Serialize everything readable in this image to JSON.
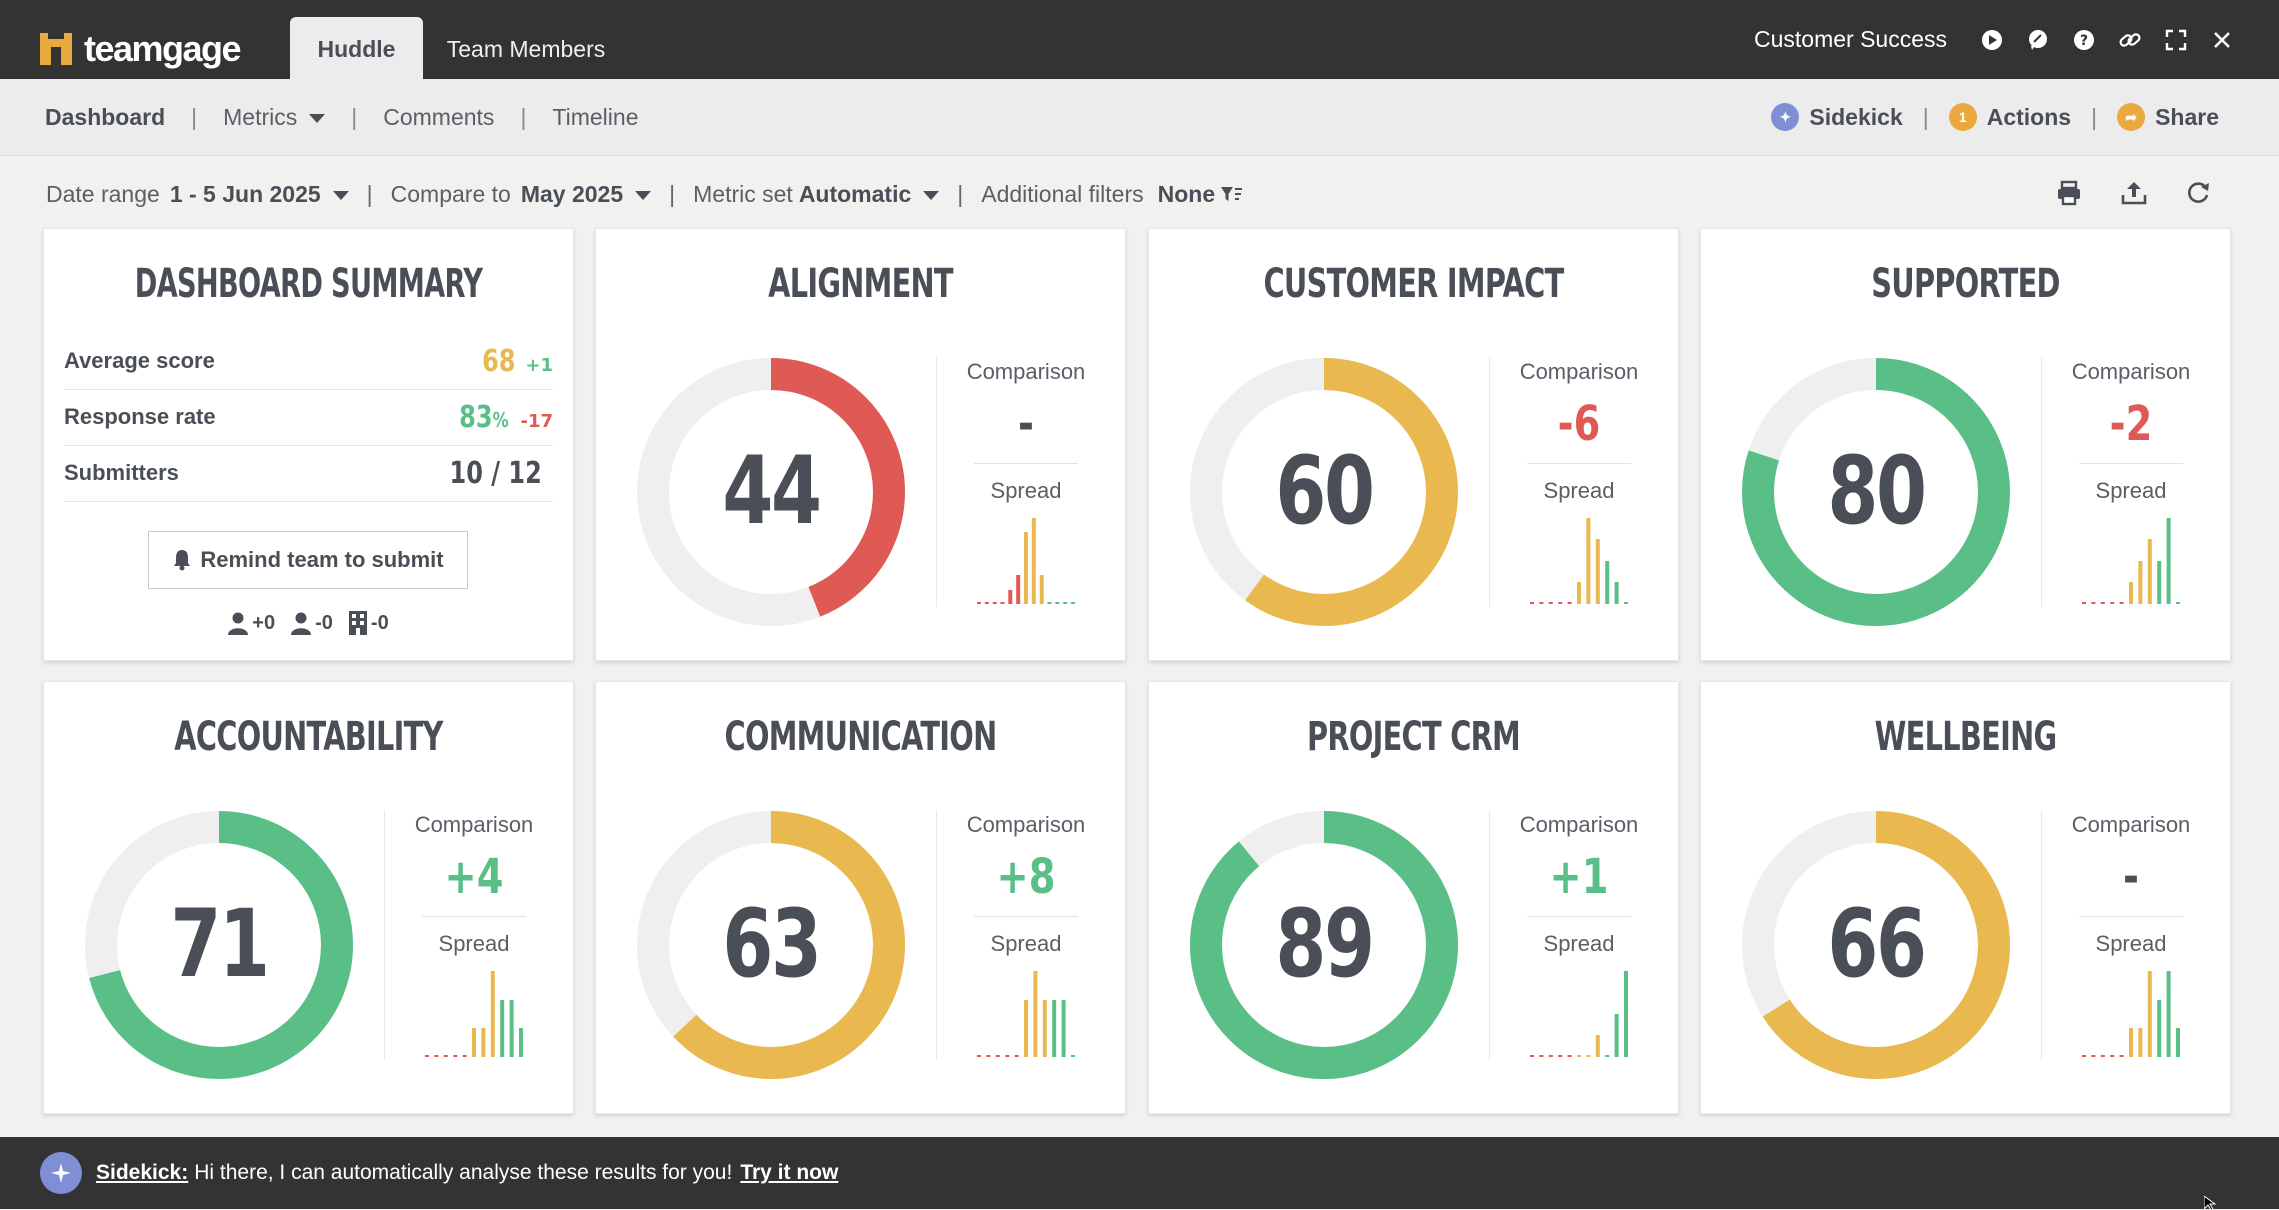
{
  "app": {
    "logo_text": "teamgage",
    "tabs": [
      {
        "label": "Huddle",
        "active": true
      },
      {
        "label": "Team Members",
        "active": false
      }
    ],
    "context_title": "Customer Success",
    "toolbar_icons": [
      "play-icon",
      "chat-icon",
      "help-icon",
      "link-icon",
      "fullscreen-icon",
      "close-icon"
    ]
  },
  "subnav": {
    "items": [
      "Dashboard",
      "Metrics",
      "Comments",
      "Timeline"
    ],
    "active": "Dashboard",
    "sidekick_label": "Sidekick",
    "actions_label": "Actions",
    "actions_count": "1",
    "share_label": "Share"
  },
  "filters": {
    "date_range_label": "Date range",
    "date_range_value": "1 - 5 Jun 2025",
    "compare_label": "Compare to",
    "compare_value": "May 2025",
    "metric_set_label": "Metric set",
    "metric_set_value": "Automatic",
    "additional_label": "Additional filters",
    "additional_value": "None",
    "action_icons": [
      "print-icon",
      "export-icon",
      "refresh-icon"
    ]
  },
  "summary": {
    "title": "DASHBOARD SUMMARY",
    "rows": [
      {
        "label": "Average score",
        "value": "68",
        "delta": "+1",
        "color": "#e9b84f",
        "delta_color": "#5abf86"
      },
      {
        "label": "Response rate",
        "value": "83",
        "unit": "%",
        "delta": "-17",
        "color": "#5abf86",
        "delta_color": "#e05a55"
      },
      {
        "label": "Submitters",
        "value": "10 / 12",
        "delta": "",
        "color": "#4a4f57",
        "delta_color": "#4a4f57"
      }
    ],
    "remind_label": "Remind team to submit",
    "mini_stats": [
      "+0",
      "-0",
      "-0"
    ]
  },
  "colors": {
    "red": "#e05a55",
    "yellow": "#e9b84f",
    "green": "#5abf86",
    "track": "#efefef",
    "text": "#4a4f57"
  },
  "labels": {
    "comparison": "Comparison",
    "spread": "Spread"
  },
  "metrics": [
    {
      "title": "ALIGNMENT",
      "score": 44,
      "comparison": "-",
      "comparison_color": "#4a4f57",
      "spread": [
        0,
        0,
        0,
        0,
        1,
        2,
        5,
        6,
        2,
        0,
        0,
        0,
        0
      ]
    },
    {
      "title": "CUSTOMER IMPACT",
      "score": 60,
      "comparison": "-6",
      "comparison_color": "#e05a55",
      "spread": [
        0,
        0,
        0,
        0,
        0,
        1,
        4,
        3,
        2,
        1,
        0
      ]
    },
    {
      "title": "SUPPORTED",
      "score": 80,
      "comparison": "-2",
      "comparison_color": "#e05a55",
      "spread": [
        0,
        0,
        0,
        0,
        0,
        1,
        2,
        3,
        2,
        4,
        0
      ]
    },
    {
      "title": "ACCOUNTABILITY",
      "score": 71,
      "comparison": "+4",
      "comparison_color": "#5abf86",
      "spread": [
        0,
        0,
        0,
        0,
        0,
        1,
        1,
        3,
        2,
        2,
        1
      ]
    },
    {
      "title": "COMMUNICATION",
      "score": 63,
      "comparison": "+8",
      "comparison_color": "#5abf86",
      "spread": [
        0,
        0,
        0,
        0,
        0,
        2,
        3,
        2,
        2,
        2,
        0
      ]
    },
    {
      "title": "PROJECT CRM",
      "score": 89,
      "comparison": "+1",
      "comparison_color": "#5abf86",
      "spread": [
        0,
        0,
        0,
        0,
        0,
        0,
        0,
        1,
        0,
        2,
        4
      ]
    },
    {
      "title": "WELLBEING",
      "score": 66,
      "comparison": "-",
      "comparison_color": "#4a4f57",
      "spread": [
        0,
        0,
        0,
        0,
        0,
        1,
        1,
        3,
        2,
        3,
        1
      ]
    }
  ],
  "bottom": {
    "name": "Sidekick:",
    "message": "Hi there, I can automatically analyse these results for you!",
    "link": "Try it now"
  }
}
